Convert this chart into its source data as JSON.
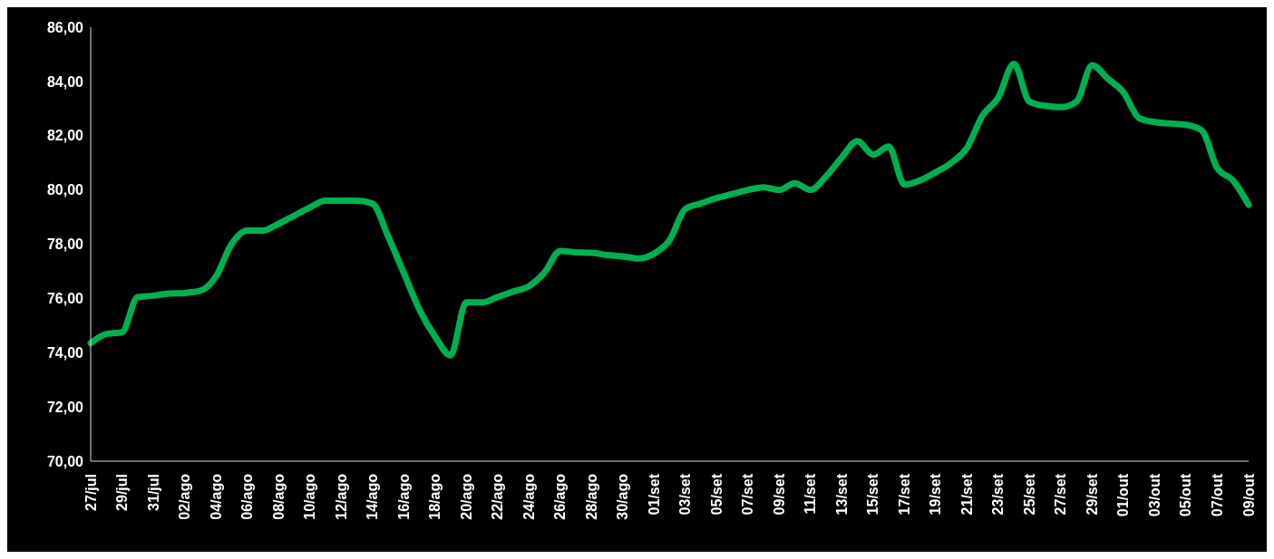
{
  "chart_data": {
    "type": "line",
    "categories": [
      "27/jul",
      null,
      "29/jul",
      null,
      "31/jul",
      null,
      "02/ago",
      null,
      "04/ago",
      null,
      "06/ago",
      null,
      "08/ago",
      null,
      "10/ago",
      null,
      "12/ago",
      null,
      "14/ago",
      null,
      "16/ago",
      null,
      "18/ago",
      null,
      "20/ago",
      null,
      "22/ago",
      null,
      "24/ago",
      null,
      "26/ago",
      null,
      "28/ago",
      null,
      "30/ago",
      null,
      "01/set",
      null,
      "03/set",
      null,
      "05/set",
      null,
      "07/set",
      null,
      "09/set",
      null,
      "11/set",
      null,
      "13/set",
      null,
      "15/set",
      null,
      "17/set",
      null,
      "19/set",
      null,
      "21/set",
      null,
      "23/set",
      null,
      "25/set",
      null,
      "27/set",
      null,
      "29/set",
      null,
      "01/out",
      null,
      "03/out",
      null,
      "05/out",
      null,
      "07/out",
      null,
      "09/out"
    ],
    "series": [
      {
        "color": "#00b050",
        "values": [
          74.35,
          74.69,
          74.75,
          76.05,
          76.1,
          76.18,
          76.2,
          76.28,
          76.8,
          78.0,
          78.5,
          78.5,
          78.75,
          79.05,
          79.35,
          79.6,
          79.6,
          79.6,
          79.5,
          78.3,
          76.95,
          75.6,
          74.6,
          73.9,
          75.85,
          75.85,
          76.05,
          76.25,
          76.45,
          76.95,
          77.75,
          77.7,
          77.68,
          77.6,
          77.55,
          77.47,
          77.65,
          78.15,
          79.3,
          79.5,
          79.7,
          79.85,
          80.0,
          80.1,
          80.0,
          80.25,
          80.0,
          80.5,
          81.2,
          81.8,
          81.3,
          81.6,
          80.2,
          80.35,
          80.65,
          81.0,
          81.55,
          82.75,
          83.4,
          84.65,
          83.25,
          83.1,
          83.05,
          83.25,
          84.6,
          84.1,
          83.6,
          82.65,
          82.5,
          82.45,
          82.4,
          82.2,
          80.8,
          80.35,
          79.45
        ]
      }
    ],
    "ylim": [
      70,
      86
    ],
    "yticks": [
      {
        "value": 70,
        "label": "70,00"
      },
      {
        "value": 72,
        "label": "72,00"
      },
      {
        "value": 74,
        "label": "74,00"
      },
      {
        "value": 76,
        "label": "76,00"
      },
      {
        "value": 78,
        "label": "78,00"
      },
      {
        "value": 80,
        "label": "80,00"
      },
      {
        "value": 82,
        "label": "82,00"
      },
      {
        "value": 84,
        "label": "84,00"
      },
      {
        "value": 86,
        "label": "86,00"
      }
    ],
    "marker": "none",
    "line_style": "solid"
  }
}
